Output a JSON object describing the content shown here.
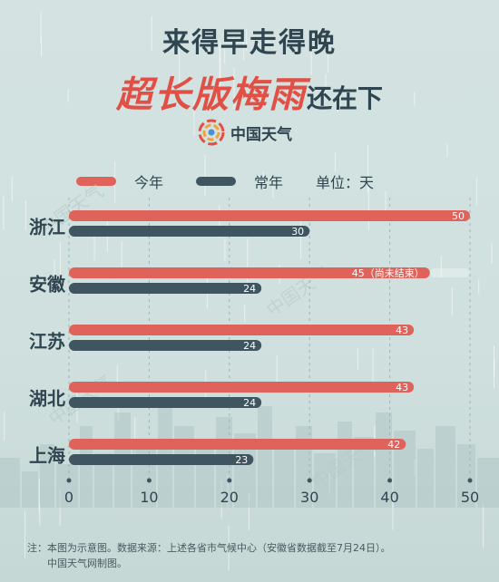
{
  "header": {
    "title_line1": "来得早走得晚",
    "title_highlight": "超长版梅雨",
    "title_rest": "还在下",
    "brand": "中国天气"
  },
  "legend": {
    "items": [
      {
        "label": "今年",
        "color": "#e0635b"
      },
      {
        "label": "常年",
        "color": "#3f5560"
      }
    ],
    "unit": "单位：天"
  },
  "watermark": "中国天气",
  "chart_data": {
    "type": "bar",
    "orientation": "horizontal",
    "categories": [
      "浙江",
      "安徽",
      "江苏",
      "湖北",
      "上海"
    ],
    "series": [
      {
        "name": "今年",
        "color": "#e0635b",
        "values": [
          50,
          45,
          43,
          43,
          42
        ]
      },
      {
        "name": "常年",
        "color": "#3f5560",
        "values": [
          30,
          24,
          24,
          24,
          23
        ]
      }
    ],
    "data_labels": {
      "今年": [
        "50",
        "45（尚未结束）",
        "43",
        "43",
        "42"
      ],
      "常年": [
        "30",
        "24",
        "24",
        "24",
        "23"
      ]
    },
    "xlim": [
      0,
      50
    ],
    "xticks": [
      0,
      10,
      20,
      30,
      40,
      50
    ],
    "unit": "单位：天",
    "grid": "vertical dashed",
    "legend_position": "top"
  },
  "footnote": {
    "line1": "注：本图为示意图。数据来源：上述各省市气候中心（安徽省数据截至7月24日）。",
    "line2": "中国天气网制图。"
  }
}
